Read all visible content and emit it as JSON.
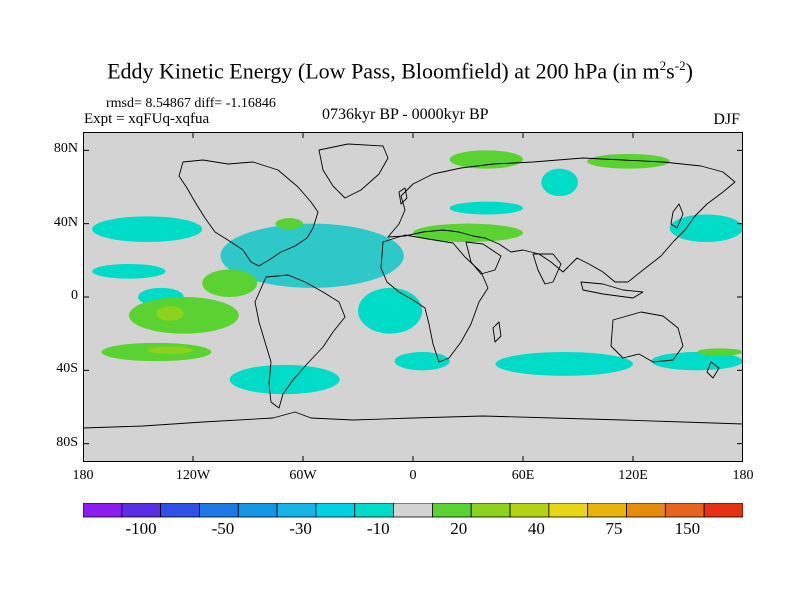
{
  "title": {
    "main": "Eddy Kinetic Energy (Low Pass, Bloomfield) at 200 hPa (in m",
    "sup1": "2",
    "mid": "s",
    "sup2": "-2",
    "close": ")"
  },
  "stats": "rmsd= 8.54867 diff= -1.16846",
  "expt": "Expt = xqFUq-xqfua",
  "period": "0736kyr BP - 0000kyr BP",
  "season": "DJF",
  "colors": {
    "land_gray": "#d3d3d3",
    "cyan": "#00dcd0",
    "teal": "#30c8b8",
    "green": "#5ad232",
    "yellow_green": "#a8d21c",
    "yellow": "#e6d614",
    "coast": "#000000"
  },
  "chart_data": {
    "type": "heatmap",
    "variable": "Eddy Kinetic Energy difference",
    "units": "m2 s-2",
    "xaxis": {
      "range": [
        -180,
        180
      ],
      "ticks": [
        -180,
        -120,
        -60,
        0,
        60,
        120,
        180
      ],
      "tick_labels": [
        "180",
        "120W",
        "60W",
        "0",
        "60E",
        "120E",
        "180"
      ]
    },
    "yaxis": {
      "range": [
        -90,
        90
      ],
      "ticks": [
        80,
        40,
        0,
        -40,
        -80
      ],
      "tick_labels": [
        "80N",
        "40N",
        "0",
        "40S",
        "80S"
      ]
    },
    "colorbar": {
      "levels": [
        -150,
        -100,
        -75,
        -50,
        -40,
        -30,
        -20,
        -10,
        10,
        20,
        30,
        40,
        50,
        75,
        100,
        150
      ],
      "colors": [
        "#8c1cf0",
        "#5a2ee6",
        "#2e50e6",
        "#1e78e6",
        "#1496e6",
        "#14b4e6",
        "#00d2e6",
        "#00dcc8",
        "#d3d3d3",
        "#5ad232",
        "#8cd21e",
        "#b4d214",
        "#e6d614",
        "#e6b40a",
        "#e68c0a",
        "#e6641e",
        "#e63214"
      ],
      "labels": [
        "-100",
        "-50",
        "-30",
        "-10",
        "20",
        "40",
        "75",
        "150"
      ]
    },
    "regions": [
      {
        "sign": "negative",
        "level": -10,
        "lon": [
          -175,
          -115
        ],
        "lat": [
          30,
          44
        ]
      },
      {
        "sign": "negative",
        "level": -10,
        "lon": [
          -175,
          -135
        ],
        "lat": [
          10,
          18
        ]
      },
      {
        "sign": "negative",
        "level": -20,
        "lon": [
          -105,
          -5
        ],
        "lat": [
          5,
          40
        ]
      },
      {
        "sign": "negative",
        "level": -10,
        "lon": [
          -30,
          5
        ],
        "lat": [
          -20,
          5
        ]
      },
      {
        "sign": "negative",
        "level": -10,
        "lon": [
          20,
          60
        ],
        "lat": [
          45,
          52
        ]
      },
      {
        "sign": "negative",
        "level": -10,
        "lon": [
          70,
          90
        ],
        "lat": [
          55,
          70
        ]
      },
      {
        "sign": "negative",
        "level": -10,
        "lon": [
          -150,
          -125
        ],
        "lat": [
          -5,
          5
        ]
      },
      {
        "sign": "negative",
        "level": -10,
        "lon": [
          -100,
          -40
        ],
        "lat": [
          -53,
          -37
        ]
      },
      {
        "sign": "negative",
        "level": -10,
        "lon": [
          -10,
          20
        ],
        "lat": [
          -40,
          -30
        ]
      },
      {
        "sign": "negative",
        "level": -10,
        "lon": [
          45,
          120
        ],
        "lat": [
          -43,
          -30
        ]
      },
      {
        "sign": "negative",
        "level": -10,
        "lon": [
          130,
          180
        ],
        "lat": [
          -40,
          -30
        ]
      },
      {
        "sign": "negative",
        "level": -10,
        "lon": [
          140,
          180
        ],
        "lat": [
          30,
          45
        ]
      },
      {
        "sign": "positive",
        "level": 10,
        "lon": [
          -170,
          -110
        ],
        "lat": [
          -35,
          -25
        ]
      },
      {
        "sign": "positive",
        "level": 20,
        "lon": [
          -145,
          -120
        ],
        "lat": [
          -31,
          -27
        ]
      },
      {
        "sign": "positive",
        "level": 10,
        "lon": [
          -155,
          -95
        ],
        "lat": [
          -20,
          0
        ]
      },
      {
        "sign": "positive",
        "level": 20,
        "lon": [
          -140,
          -125
        ],
        "lat": [
          -13,
          -5
        ]
      },
      {
        "sign": "positive",
        "level": 10,
        "lon": [
          -115,
          -85
        ],
        "lat": [
          0,
          15
        ]
      },
      {
        "sign": "positive",
        "level": 10,
        "lon": [
          0,
          60
        ],
        "lat": [
          30,
          40
        ]
      },
      {
        "sign": "positive",
        "level": 10,
        "lon": [
          20,
          60
        ],
        "lat": [
          70,
          80
        ]
      },
      {
        "sign": "positive",
        "level": 10,
        "lon": [
          95,
          140
        ],
        "lat": [
          70,
          78
        ]
      },
      {
        "sign": "positive",
        "level": 10,
        "lon": [
          -75,
          -60
        ],
        "lat": [
          37,
          43
        ]
      },
      {
        "sign": "positive",
        "level": 10,
        "lon": [
          155,
          180
        ],
        "lat": [
          -32,
          -28
        ]
      },
      {
        "sign": "positive",
        "level": 10,
        "lon": [
          25,
          35
        ],
        "lat": [
          35,
          40
        ]
      }
    ]
  }
}
